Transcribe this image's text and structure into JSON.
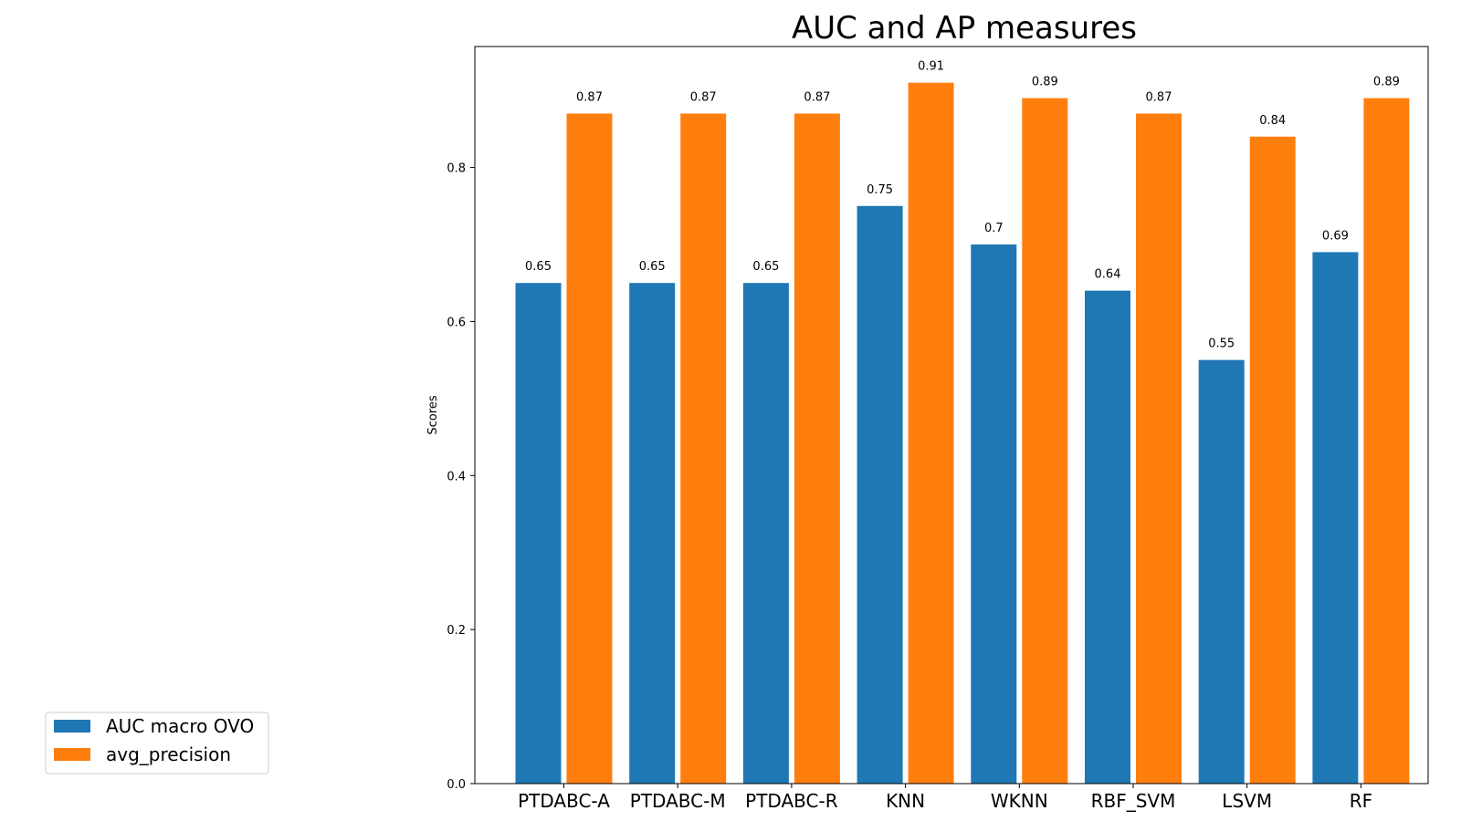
{
  "chart_data": {
    "type": "bar",
    "title": "AUC and AP measures",
    "xlabel": "",
    "ylabel": "Scores",
    "categories": [
      "PTDABC-A",
      "PTDABC-M",
      "PTDABC-R",
      "KNN",
      "WKNN",
      "RBF_SVM",
      "LSVM",
      "RF"
    ],
    "series": [
      {
        "name": "AUC macro OVO",
        "color": "#1f77b4",
        "values": [
          0.65,
          0.65,
          0.65,
          0.75,
          0.7,
          0.64,
          0.55,
          0.69
        ],
        "labels": [
          "0.65",
          "0.65",
          "0.65",
          "0.75",
          "0.7",
          "0.64",
          "0.55",
          "0.69"
        ]
      },
      {
        "name": "avg_precision",
        "color": "#ff7f0e",
        "values": [
          0.87,
          0.87,
          0.87,
          0.91,
          0.89,
          0.87,
          0.84,
          0.89
        ],
        "labels": [
          "0.87",
          "0.87",
          "0.87",
          "0.91",
          "0.89",
          "0.87",
          "0.84",
          "0.89"
        ]
      }
    ],
    "ylim": [
      0,
      0.957
    ],
    "yticks": [
      0.0,
      0.2,
      0.4,
      0.6,
      0.8
    ],
    "ytick_labels": [
      "0.0",
      "0.2",
      "0.4",
      "0.6",
      "0.8"
    ],
    "grid": false,
    "legend_position": "lower-left, outside plot"
  }
}
